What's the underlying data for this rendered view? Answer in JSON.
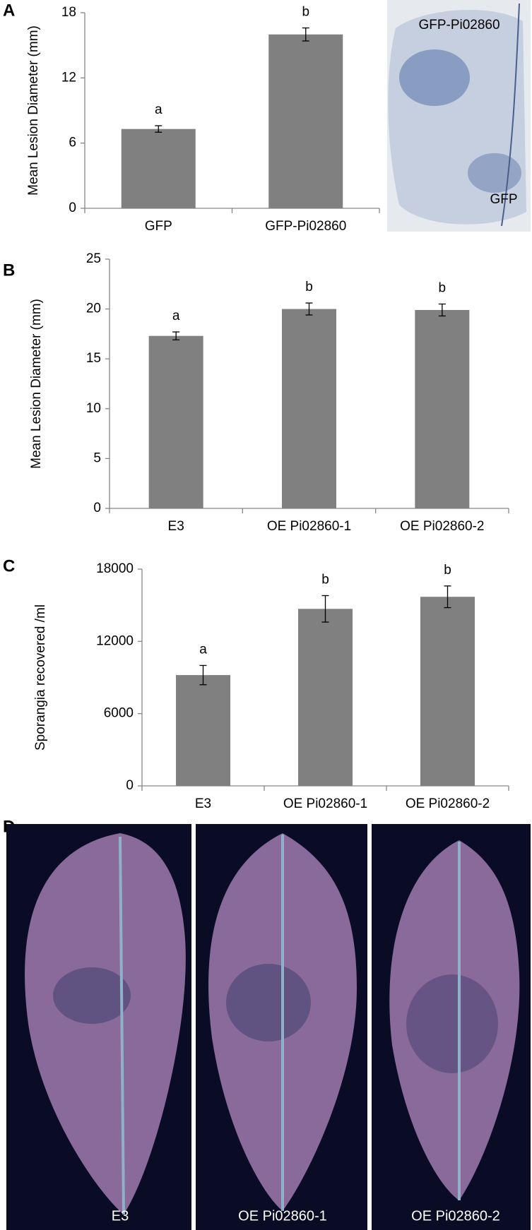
{
  "panel_labels": [
    "A",
    "B",
    "C",
    "D"
  ],
  "chart_data": [
    {
      "type": "bar",
      "ylabel": "Mean Lesion Diameter (mm)",
      "categories": [
        "GFP",
        "GFP-Pi02860"
      ],
      "values": [
        7.3,
        16
      ],
      "errors": [
        0.3,
        0.6
      ],
      "annotations": [
        "a",
        "b"
      ],
      "color": "#808080",
      "ylim": [
        0,
        18
      ],
      "yticks": [
        0,
        6,
        12,
        18
      ]
    },
    {
      "type": "bar",
      "ylabel": "Mean Lesion Diameter (mm)",
      "categories": [
        "E3",
        "OE Pi02860-1",
        "OE Pi02860-2"
      ],
      "values": [
        17.3,
        20,
        19.9
      ],
      "errors": [
        0.4,
        0.6,
        0.6
      ],
      "annotations": [
        "a",
        "b",
        "b"
      ],
      "color": "#808080",
      "ylim": [
        0,
        25
      ],
      "yticks": [
        0,
        5,
        10,
        15,
        20,
        25
      ]
    },
    {
      "type": "bar",
      "ylabel": "Sporangia recovered /ml",
      "categories": [
        "E3",
        "OE Pi02860-1",
        "OE Pi02860-2"
      ],
      "values": [
        9200,
        14700,
        15700
      ],
      "errors": [
        800,
        1100,
        900
      ],
      "annotations": [
        "a",
        "b",
        "b"
      ],
      "color": "#808080",
      "ylim": [
        0,
        18000
      ],
      "yticks": [
        0,
        6000,
        12000,
        18000
      ]
    }
  ],
  "photo_a": {
    "labels": [
      "GFP-Pi02860",
      "GFP"
    ]
  },
  "photo_d": {
    "labels": [
      "E3",
      "OE Pi02860-1",
      "OE Pi02860-2"
    ]
  }
}
